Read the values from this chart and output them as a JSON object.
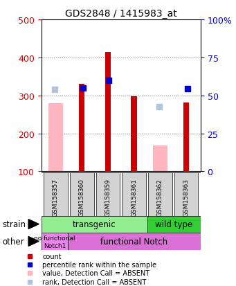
{
  "title": "GDS2848 / 1415983_at",
  "samples": [
    "GSM158357",
    "GSM158360",
    "GSM158359",
    "GSM158361",
    "GSM158362",
    "GSM158363"
  ],
  "count_values": [
    null,
    330,
    415,
    297,
    null,
    282
  ],
  "value_absent": [
    280,
    null,
    null,
    null,
    168,
    null
  ],
  "rank_values": [
    null,
    320,
    340,
    null,
    null,
    318
  ],
  "rank_absent": [
    315,
    null,
    null,
    null,
    270,
    null
  ],
  "ylim": [
    100,
    500
  ],
  "yticks": [
    100,
    200,
    300,
    400,
    500
  ],
  "y2ticks": [
    0,
    25,
    50,
    75,
    100
  ],
  "y2tick_labels": [
    "0",
    "25",
    "50",
    "75",
    "100%"
  ],
  "transgenic_color": "#90ee90",
  "wildtype_color": "#32cd32",
  "nofunctional_color": "#ee82ee",
  "functional_color": "#da70d6",
  "count_color": "#cc0000",
  "rank_color": "#0000cc",
  "value_absent_color": "#ffb6c1",
  "rank_absent_color": "#b0c4de",
  "ylabel_left_color": "#cc0000",
  "ylabel_right_color": "#0000cc",
  "gray_box_color": "#d3d3d3"
}
